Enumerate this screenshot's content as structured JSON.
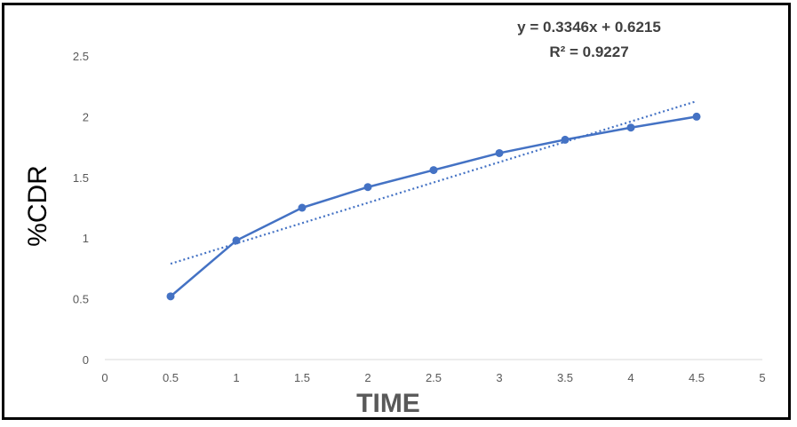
{
  "chart_data": {
    "type": "line",
    "xlabel": "TIME",
    "ylabel": "%CDR",
    "xlim": [
      0,
      5
    ],
    "ylim": [
      0,
      2.5
    ],
    "x_ticks": [
      "0",
      "0.5",
      "1",
      "1.5",
      "2",
      "2.5",
      "3",
      "3.5",
      "4",
      "4.5",
      "5"
    ],
    "y_ticks": [
      "0",
      "0.5",
      "1",
      "1.5",
      "2",
      "2.5"
    ],
    "grid": false,
    "series": [
      {
        "x": [
          0.5,
          1,
          1.5,
          2,
          2.5,
          3,
          3.5,
          4,
          4.5
        ],
        "values": [
          0.52,
          0.98,
          1.25,
          1.42,
          1.56,
          1.7,
          1.81,
          1.91,
          2.0
        ],
        "color": "#4472C4",
        "marker": "circle"
      }
    ],
    "trendline": {
      "style": "dotted",
      "color": "#4472C4",
      "slope": 0.3346,
      "intercept": 0.6215,
      "x_range": [
        0.5,
        4.5
      ]
    },
    "annotations": {
      "equation": "y = 0.3346x + 0.6215",
      "r_squared": "R² = 0.9227"
    }
  }
}
